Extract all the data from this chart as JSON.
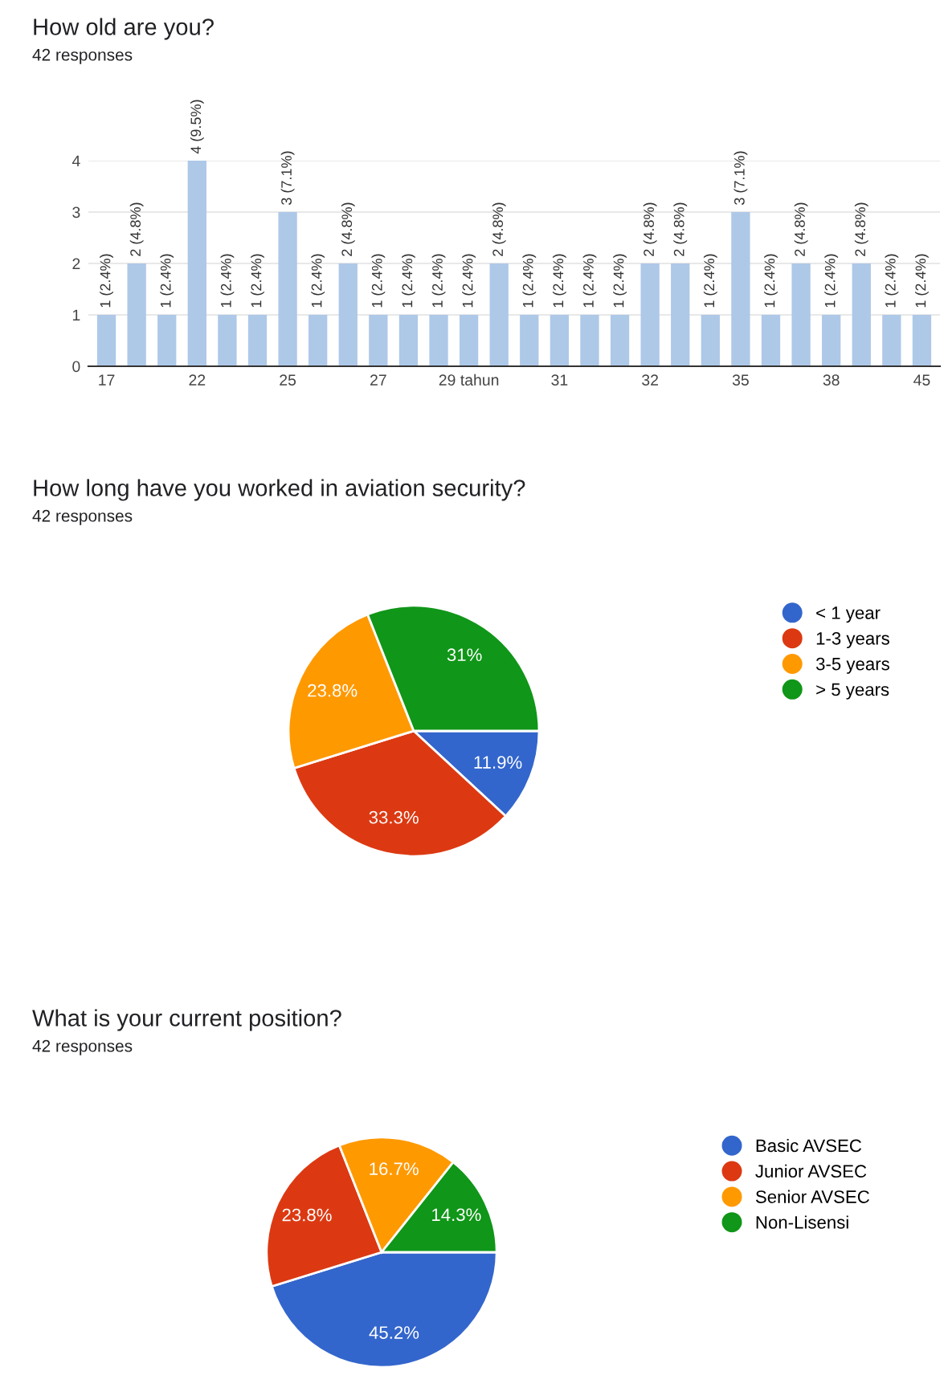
{
  "chart_data": [
    {
      "type": "bar",
      "title": "How old are you?",
      "subtitle": "42 responses",
      "categories": [
        "17",
        null,
        null,
        "22",
        null,
        null,
        "25",
        null,
        null,
        "27",
        null,
        null,
        "29 tahun",
        null,
        null,
        "31",
        null,
        null,
        "32",
        null,
        null,
        "35",
        null,
        null,
        "38",
        null,
        null,
        "45"
      ],
      "values": [
        1,
        2,
        1,
        4,
        1,
        1,
        3,
        1,
        2,
        1,
        1,
        1,
        1,
        2,
        1,
        1,
        1,
        1,
        2,
        2,
        1,
        3,
        1,
        2,
        1,
        2,
        1,
        1
      ],
      "value_labels": [
        "1 (2.4%)",
        "2 (4.8%)",
        "1 (2.4%)",
        "4 (9.5%)",
        "1 (2.4%)",
        "1 (2.4%)",
        "3 (7.1%)",
        "1 (2.4%)",
        "2 (4.8%)",
        "1 (2.4%)",
        "1 (2.4%)",
        "1 (2.4%)",
        "1 (2.4%)",
        "2 (4.8%)",
        "1 (2.4%)",
        "1 (2.4%)",
        "1 (2.4%)",
        "1 (2.4%)",
        "2 (4.8%)",
        "2 (4.8%)",
        "1 (2.4%)",
        "3 (7.1%)",
        "1 (2.4%)",
        "2 (4.8%)",
        "1 (2.4%)",
        "2 (4.8%)",
        "1 (2.4%)",
        "1 (2.4%)"
      ],
      "color": "#aec8e8",
      "ylim": [
        0,
        4
      ],
      "yticks": [
        0,
        1,
        2,
        3,
        4
      ],
      "grid": "y"
    },
    {
      "type": "pie",
      "title": "How long have you worked in aviation security?",
      "subtitle": "42 responses",
      "categories": [
        "< 1 year",
        "1-3 years",
        "3-5 years",
        "> 5 years"
      ],
      "values": [
        11.9,
        33.3,
        23.8,
        31
      ],
      "value_labels": [
        "11.9%",
        "33.3%",
        "23.8%",
        "31%"
      ],
      "colors": [
        "#3366cc",
        "#dc3912",
        "#ff9900",
        "#109618"
      ],
      "legend": "top right"
    },
    {
      "type": "pie",
      "title": "What is your current position?",
      "subtitle": "42 responses",
      "categories": [
        "Basic AVSEC",
        "Junior AVSEC",
        "Senior AVSEC",
        "Non-Lisensi"
      ],
      "values": [
        45.2,
        23.8,
        16.7,
        14.3
      ],
      "value_labels": [
        "45.2%",
        "23.8%",
        "16.7%",
        "14.3%"
      ],
      "colors": [
        "#3366cc",
        "#dc3912",
        "#ff9900",
        "#109618"
      ],
      "legend": "top right"
    }
  ]
}
